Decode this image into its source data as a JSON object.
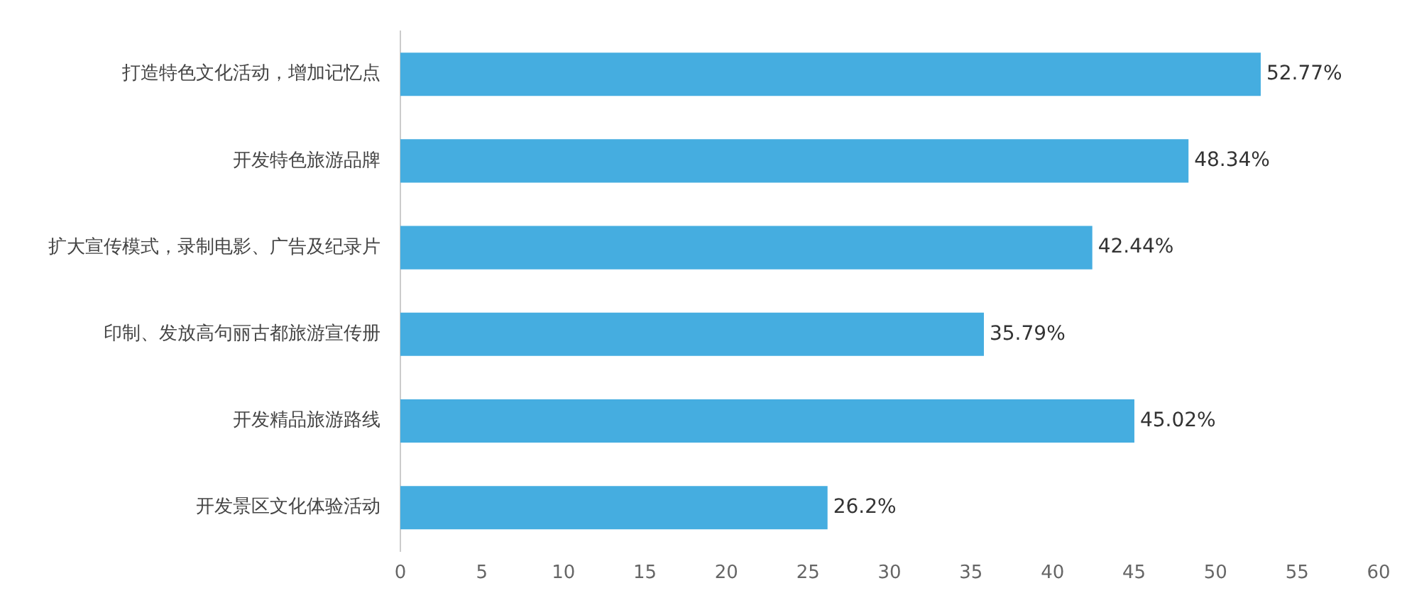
{
  "chart_data": {
    "type": "bar",
    "orientation": "horizontal",
    "categories": [
      "打造特色文化活动，增加记忆点",
      "开发特色旅游品牌",
      "扩大宣传模式，录制电影、广告及纪录片",
      "印制、发放高句丽古都旅游宣传册",
      "开发精品旅游路线",
      "开发景区文化体验活动"
    ],
    "values": [
      52.77,
      48.34,
      42.44,
      35.79,
      45.02,
      26.2
    ],
    "value_labels": [
      "52.77%",
      "48.34%",
      "42.44%",
      "35.79%",
      "45.02%",
      "26.2%"
    ],
    "color": "#45ade0",
    "xlim": [
      0,
      60
    ],
    "xticks": [
      0,
      5,
      10,
      15,
      20,
      25,
      30,
      35,
      40,
      45,
      50,
      55,
      60
    ],
    "grid": false,
    "legend": false
  }
}
